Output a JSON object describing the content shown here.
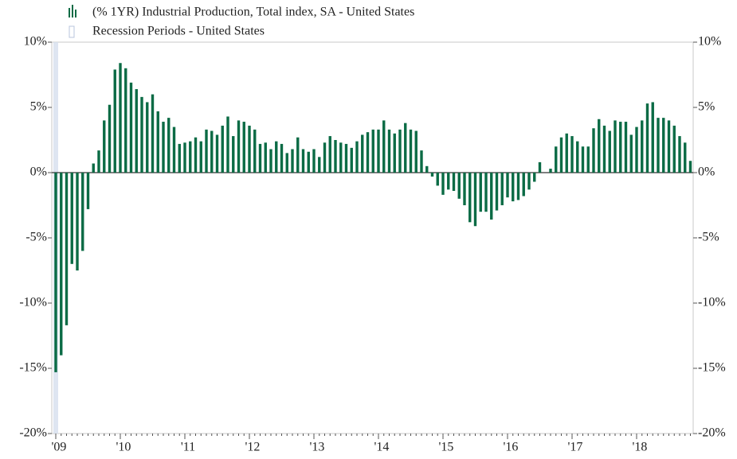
{
  "chart_data": {
    "type": "bar",
    "series": [
      {
        "name": "(% 1YR) Industrial Production, Total index, SA - United States",
        "color": "#0b6b45",
        "values": [
          -15.3,
          -14.0,
          -11.7,
          -7.0,
          -7.5,
          -6.0,
          -2.8,
          0.7,
          1.7,
          4.0,
          5.2,
          7.9,
          8.4,
          8.0,
          6.9,
          6.4,
          5.8,
          5.4,
          6.0,
          4.7,
          3.9,
          4.2,
          3.5,
          2.2,
          2.3,
          2.4,
          2.7,
          2.4,
          3.3,
          3.2,
          2.9,
          3.6,
          4.3,
          2.8,
          4.0,
          3.9,
          3.6,
          3.3,
          2.2,
          2.3,
          1.8,
          2.4,
          2.2,
          1.5,
          1.8,
          2.7,
          1.8,
          1.6,
          1.8,
          1.2,
          2.3,
          2.8,
          2.5,
          2.3,
          2.2,
          1.9,
          2.4,
          2.9,
          3.1,
          3.3,
          3.3,
          4.0,
          3.3,
          3.0,
          3.3,
          3.8,
          3.3,
          3.2,
          1.7,
          0.5,
          -0.3,
          -1.0,
          -1.7,
          -1.3,
          -1.4,
          -2.0,
          -2.5,
          -3.8,
          -4.1,
          -3.0,
          -3.0,
          -3.6,
          -2.9,
          -2.5,
          -1.9,
          -2.2,
          -2.1,
          -1.8,
          -1.3,
          -0.7,
          0.8,
          0.0,
          0.3,
          2.0,
          2.7,
          3.0,
          2.8,
          2.4,
          2.0,
          2.0,
          3.4,
          4.1,
          3.6,
          3.2,
          4.0,
          3.9,
          3.9,
          2.9,
          3.5,
          4.0,
          5.3,
          5.4,
          4.2,
          4.2,
          4.0,
          3.6,
          2.8,
          2.3,
          0.9
        ]
      }
    ],
    "recession": {
      "name": "Recession Periods - United States",
      "color": "#d6deee"
    },
    "categories": [
      "'09",
      null,
      null,
      null,
      null,
      null,
      null,
      null,
      null,
      null,
      null,
      null,
      "'10",
      null,
      null,
      null,
      null,
      null,
      null,
      null,
      null,
      null,
      null,
      null,
      "'11",
      null,
      null,
      null,
      null,
      null,
      null,
      null,
      null,
      null,
      null,
      null,
      "'12",
      null,
      null,
      null,
      null,
      null,
      null,
      null,
      null,
      null,
      null,
      null,
      "'13",
      null,
      null,
      null,
      null,
      null,
      null,
      null,
      null,
      null,
      null,
      null,
      "'14",
      null,
      null,
      null,
      null,
      null,
      null,
      null,
      null,
      null,
      null,
      null,
      "'15",
      null,
      null,
      null,
      null,
      null,
      null,
      null,
      null,
      null,
      null,
      null,
      "'16",
      null,
      null,
      null,
      null,
      null,
      null,
      null,
      null,
      null,
      null,
      null,
      "'17",
      null,
      null,
      null,
      null,
      null,
      null,
      null,
      null,
      null,
      null,
      null,
      "'18",
      null,
      null,
      null,
      null,
      null,
      null,
      null,
      null,
      null,
      null
    ],
    "ylim": [
      -20,
      10
    ],
    "yticks": [
      {
        "value": -20,
        "label": "-20%"
      },
      {
        "value": -15,
        "label": "-15%"
      },
      {
        "value": -10,
        "label": "-10%"
      },
      {
        "value": -5,
        "label": "-5%"
      },
      {
        "value": 0,
        "label": "0%"
      },
      {
        "value": 5,
        "label": "5%"
      },
      {
        "value": 10,
        "label": "10%"
      }
    ],
    "y2lim": [
      -20,
      10
    ],
    "y2ticks": [
      {
        "value": -20,
        "label": "-20%"
      },
      {
        "value": -15,
        "label": "-15%"
      },
      {
        "value": -10,
        "label": "-10%"
      },
      {
        "value": -5,
        "label": "-5%"
      },
      {
        "value": 0,
        "label": "0%"
      },
      {
        "value": 5,
        "label": "5%"
      },
      {
        "value": 10,
        "label": "10%"
      }
    ],
    "grid": false
  }
}
